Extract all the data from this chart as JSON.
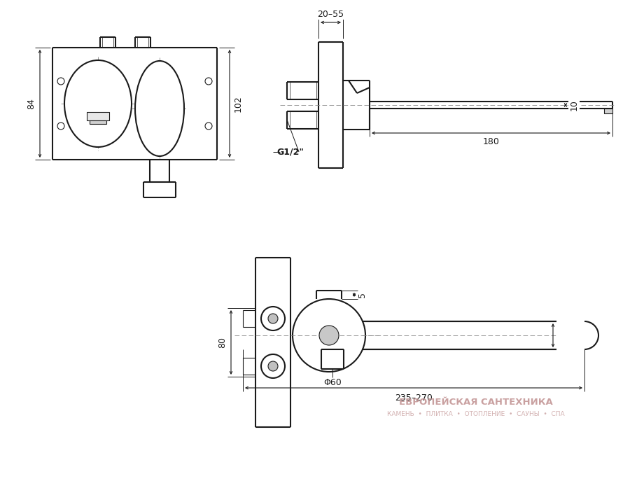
{
  "bg_color": "#ffffff",
  "line_color": "#1a1a1a",
  "watermark_text1": "ЕВРОПЕЙСКАЯ САНТЕХНИКА",
  "watermark_text2": "КАМЕНЬ  •  ПЛИТКА  •  ОТОПЛЕНИЕ  •  САУНЫ  •  СПА",
  "fig_width": 9.0,
  "fig_height": 6.87,
  "dpi": 100
}
